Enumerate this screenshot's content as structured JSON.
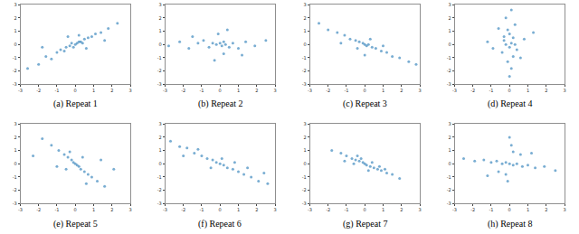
{
  "chart_data": [
    {
      "type": "scatter",
      "title": "(a) Repeat 1",
      "color": "#1f77b4",
      "xlim": [
        -3,
        3
      ],
      "ylim": [
        -3,
        3
      ],
      "xticks": [
        -3,
        -2,
        -1,
        0,
        1,
        2,
        3
      ],
      "yticks": [
        -3,
        -2,
        -1,
        0,
        1,
        2,
        3
      ],
      "grid": false,
      "x": [
        -2.6,
        -2.0,
        -1.6,
        -1.3,
        -1.0,
        -0.8,
        -0.6,
        -0.5,
        -0.3,
        -0.2,
        -0.1,
        0,
        0.1,
        0.2,
        0.3,
        0.4,
        0.5,
        0.7,
        0.9,
        1.1,
        1.4,
        1.8,
        2.3,
        -0.4,
        0.6,
        1.6,
        -1.8,
        0.2
      ],
      "y": [
        -1.8,
        -1.5,
        -0.9,
        -1.1,
        -0.6,
        -0.4,
        -0.5,
        -0.2,
        -0.1,
        0.1,
        -0.2,
        0.0,
        0.1,
        0.2,
        0.2,
        0.1,
        0.4,
        0.5,
        0.6,
        0.8,
        0.9,
        1.2,
        1.6,
        0.6,
        -0.3,
        0.3,
        -0.2,
        0.7
      ]
    },
    {
      "type": "scatter",
      "title": "(b) Repeat 2",
      "color": "#1f77b4",
      "xlim": [
        -3,
        3
      ],
      "ylim": [
        -3,
        3
      ],
      "xticks": [
        -3,
        -2,
        -1,
        0,
        1,
        2,
        3
      ],
      "yticks": [
        -3,
        -2,
        -1,
        0,
        1,
        2,
        3
      ],
      "grid": false,
      "x": [
        -2.8,
        -2.2,
        -1.7,
        -1.2,
        -0.9,
        -0.6,
        -0.4,
        -0.2,
        0,
        0.1,
        0.2,
        0.3,
        0.5,
        0.7,
        1.0,
        1.4,
        1.9,
        2.5,
        -0.1,
        0.2,
        -0.3,
        0.4,
        -1.5,
        1.2
      ],
      "y": [
        -0.1,
        0.2,
        -0.3,
        0.1,
        0.3,
        -0.2,
        0.1,
        0.0,
        0.1,
        -0.1,
        0.2,
        0.0,
        -0.2,
        0.1,
        -0.3,
        0.2,
        -0.1,
        0.3,
        0.8,
        -0.7,
        -1.2,
        1.1,
        0.6,
        -0.8
      ]
    },
    {
      "type": "scatter",
      "title": "(c) Repeat 3",
      "color": "#1f77b4",
      "xlim": [
        -3,
        3
      ],
      "ylim": [
        -3,
        3
      ],
      "xticks": [
        -3,
        -2,
        -1,
        0,
        1,
        2,
        3
      ],
      "yticks": [
        -3,
        -2,
        -1,
        0,
        1,
        2,
        3
      ],
      "grid": false,
      "x": [
        -2.5,
        -2.0,
        -1.5,
        -1.1,
        -0.8,
        -0.5,
        -0.3,
        -0.1,
        0,
        0.1,
        0.2,
        0.4,
        0.6,
        0.9,
        1.2,
        1.5,
        1.9,
        2.4,
        2.8,
        -0.4,
        0.3,
        -1.3,
        1.0,
        0.0
      ],
      "y": [
        1.6,
        1.1,
        0.9,
        0.7,
        0.4,
        0.3,
        0.2,
        0.1,
        0.0,
        -0.1,
        0.0,
        -0.2,
        -0.3,
        -0.5,
        -0.6,
        -0.9,
        -1.0,
        -1.3,
        -1.5,
        -0.3,
        0.4,
        0.1,
        -0.1,
        -0.8
      ]
    },
    {
      "type": "scatter",
      "title": "(d) Repeat 4",
      "color": "#1f77b4",
      "xlim": [
        -3,
        3
      ],
      "ylim": [
        -3,
        3
      ],
      "xticks": [
        -3,
        -2,
        -1,
        0,
        1,
        2,
        3
      ],
      "yticks": [
        -3,
        -2,
        -1,
        0,
        1,
        2,
        3
      ],
      "grid": false,
      "x": [
        0.1,
        -0.2,
        0.3,
        -0.1,
        0.0,
        0.2,
        -0.3,
        0.1,
        -0.2,
        0.0,
        0.4,
        -0.4,
        0.2,
        -0.1,
        0.1,
        0.0,
        0.8,
        -0.9,
        1.3,
        -1.2,
        0.6,
        -0.6,
        0.3,
        -0.3
      ],
      "y": [
        2.6,
        2.0,
        1.5,
        1.1,
        0.8,
        0.5,
        0.3,
        0.1,
        0.0,
        -0.2,
        -0.4,
        -0.6,
        -0.9,
        -1.3,
        -1.8,
        -2.4,
        0.4,
        -0.3,
        0.9,
        0.2,
        -1.0,
        1.2,
        0.0,
        0.6
      ]
    },
    {
      "type": "scatter",
      "title": "(e) Repeat 5",
      "color": "#1f77b4",
      "xlim": [
        -3,
        3
      ],
      "ylim": [
        -3,
        3
      ],
      "xticks": [
        -3,
        -2,
        -1,
        0,
        1,
        2,
        3
      ],
      "yticks": [
        -3,
        -2,
        -1,
        0,
        1,
        2,
        3
      ],
      "grid": false,
      "x": [
        -1.8,
        -1.3,
        -0.9,
        -0.6,
        -0.4,
        -0.2,
        -0.1,
        0,
        0.1,
        0.2,
        0.3,
        0.5,
        0.7,
        0.9,
        1.2,
        1.6,
        -2.3,
        2.1,
        0.4,
        -0.5,
        1.4,
        -1.0,
        0.6,
        -0.3
      ],
      "y": [
        1.9,
        1.4,
        1.0,
        0.7,
        0.5,
        0.3,
        0.1,
        0.0,
        -0.1,
        -0.2,
        -0.4,
        -0.6,
        -0.8,
        -1.0,
        -1.3,
        -1.7,
        0.6,
        -0.4,
        0.5,
        -0.4,
        0.3,
        -0.2,
        -1.5,
        0.9
      ]
    },
    {
      "type": "scatter",
      "title": "(f) Repeat 6",
      "color": "#1f77b4",
      "xlim": [
        -3,
        3
      ],
      "ylim": [
        -3,
        3
      ],
      "xticks": [
        -3,
        -2,
        -1,
        0,
        1,
        2,
        3
      ],
      "yticks": [
        -3,
        -2,
        -1,
        0,
        1,
        2,
        3
      ],
      "grid": false,
      "x": [
        -2.7,
        -2.2,
        -1.8,
        -1.4,
        -1.0,
        -0.7,
        -0.4,
        -0.2,
        0,
        0.2,
        0.4,
        0.7,
        1.0,
        1.3,
        1.7,
        2.1,
        2.6,
        -1.2,
        0.8,
        -0.5,
        1.5,
        0.1,
        -2.0,
        2.4
      ],
      "y": [
        1.7,
        1.3,
        1.2,
        0.8,
        0.6,
        0.4,
        0.3,
        0.1,
        0.0,
        -0.1,
        -0.3,
        -0.4,
        -0.6,
        -0.8,
        -1.0,
        -1.3,
        -1.5,
        1.1,
        0.1,
        -0.3,
        -0.3,
        0.4,
        0.6,
        -0.7
      ]
    },
    {
      "type": "scatter",
      "title": "(g) Repeat 7",
      "color": "#1f77b4",
      "xlim": [
        -3,
        3
      ],
      "ylim": [
        -3,
        3
      ],
      "xticks": [
        -3,
        -2,
        -1,
        0,
        1,
        2,
        3
      ],
      "yticks": [
        -3,
        -2,
        -1,
        0,
        1,
        2,
        3
      ],
      "grid": false,
      "x": [
        -1.8,
        -1.3,
        -1.0,
        -0.7,
        -0.5,
        -0.3,
        -0.1,
        0,
        0.1,
        0.3,
        0.5,
        0.7,
        0.9,
        1.2,
        1.5,
        1.9,
        -0.6,
        0.4,
        0.2,
        -0.2,
        0.8,
        -1.1,
        1.1,
        -0.4
      ],
      "y": [
        1.0,
        0.8,
        0.6,
        0.4,
        0.3,
        0.2,
        0.1,
        0.0,
        -0.1,
        -0.2,
        -0.3,
        -0.4,
        -0.5,
        -0.7,
        -0.8,
        -1.1,
        0.0,
        0.1,
        -0.5,
        0.4,
        -0.2,
        0.2,
        -0.4,
        0.6
      ]
    },
    {
      "type": "scatter",
      "title": "(h) Repeat 8",
      "color": "#1f77b4",
      "xlim": [
        -3,
        3
      ],
      "ylim": [
        -3,
        3
      ],
      "xticks": [
        -3,
        -2,
        -1,
        0,
        1,
        2,
        3
      ],
      "yticks": [
        -3,
        -2,
        -1,
        0,
        1,
        2,
        3
      ],
      "grid": false,
      "x": [
        -2.5,
        -1.9,
        -1.4,
        -1.0,
        -0.7,
        -0.4,
        -0.2,
        0,
        0.2,
        0.4,
        0.7,
        1.0,
        1.4,
        1.9,
        2.5,
        0.1,
        -0.1,
        0.2,
        -0.2,
        0.0,
        0.6,
        -0.6,
        1.2,
        -1.2
      ],
      "y": [
        0.4,
        0.2,
        0.3,
        0.1,
        0.2,
        0.0,
        0.1,
        0.0,
        -0.1,
        0.0,
        -0.2,
        -0.1,
        -0.3,
        -0.2,
        -0.5,
        1.4,
        -1.3,
        0.9,
        -0.8,
        2.0,
        0.7,
        -0.6,
        0.8,
        -0.9
      ]
    }
  ]
}
